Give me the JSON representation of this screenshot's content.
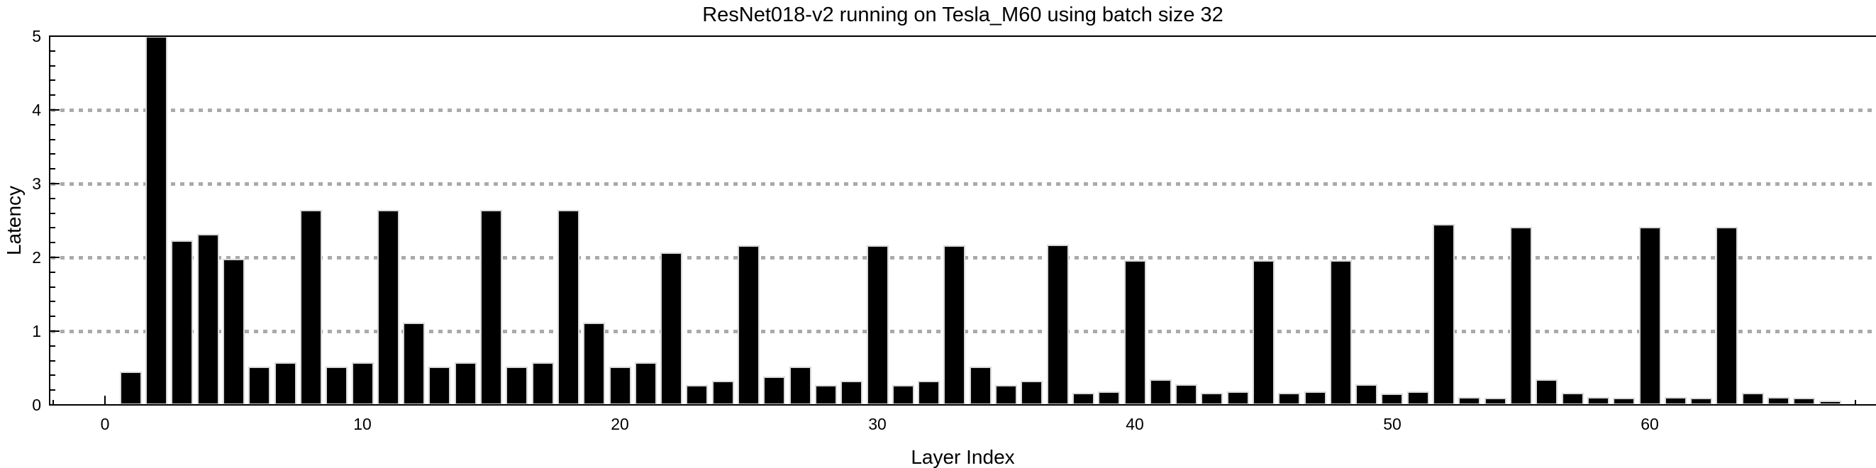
{
  "chart_data": {
    "type": "bar",
    "title": "ResNet018-v2 running on Tesla_M60 using batch size 32",
    "xlabel": "Layer Index",
    "ylabel": "Latency",
    "legend": "none",
    "background": "#ffffff",
    "bar_color": "#000000",
    "bar_edge_color": "#d9d9d9",
    "grid_color": "#aaaaaa",
    "frame_color": "#000000",
    "grid_style": "dotted-horizontal",
    "gridlines_y": [
      1,
      2,
      3,
      4
    ],
    "ylim": [
      0,
      5
    ],
    "xlim": [
      -2.2,
      68.8
    ],
    "x_ticks": [
      0,
      10,
      20,
      30,
      40,
      50,
      60
    ],
    "y_ticks": [
      0,
      1,
      2,
      3,
      4,
      5
    ],
    "x_minor_tick_step": 2,
    "y_minor_tick_step": 0.2,
    "frame": "left-top-bottom (right edge clipped by image)",
    "x": [
      1,
      2,
      3,
      4,
      5,
      6,
      7,
      8,
      9,
      10,
      11,
      12,
      13,
      14,
      15,
      16,
      17,
      18,
      19,
      20,
      21,
      22,
      23,
      24,
      25,
      26,
      27,
      28,
      29,
      30,
      31,
      32,
      33,
      34,
      35,
      36,
      37,
      38,
      39,
      40,
      41,
      42,
      43,
      44,
      45,
      46,
      47,
      48,
      49,
      50,
      51,
      52,
      53,
      54,
      55,
      56,
      57,
      58,
      59,
      60,
      61,
      62,
      63,
      64,
      65,
      66,
      67
    ],
    "values": [
      0.45,
      5.0,
      2.23,
      2.32,
      1.98,
      0.52,
      0.58,
      2.64,
      0.52,
      0.58,
      2.64,
      1.12,
      0.52,
      0.58,
      2.64,
      0.52,
      0.58,
      2.64,
      1.12,
      0.52,
      0.58,
      2.07,
      0.27,
      0.33,
      2.16,
      0.38,
      0.52,
      0.27,
      0.33,
      2.16,
      0.27,
      0.33,
      2.16,
      0.52,
      0.27,
      0.33,
      2.17,
      0.16,
      0.18,
      1.96,
      0.35,
      0.28,
      0.16,
      0.18,
      1.96,
      0.16,
      0.18,
      1.96,
      0.28,
      0.15,
      0.18,
      2.45,
      0.11,
      0.1,
      2.41,
      0.35,
      0.16,
      0.11,
      0.1,
      2.41,
      0.11,
      0.1,
      2.41,
      0.16,
      0.11,
      0.1,
      0.06
    ]
  }
}
